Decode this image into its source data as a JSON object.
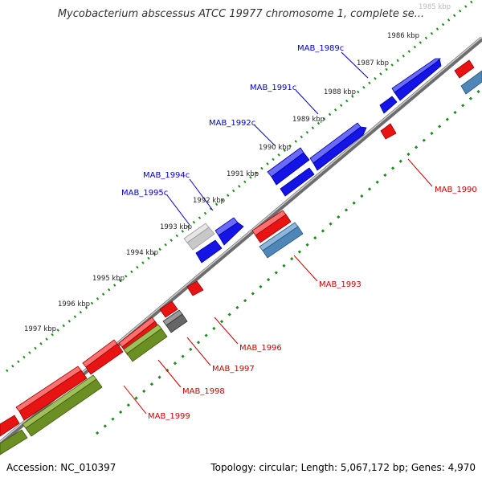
{
  "header": {
    "title": "Mycobacterium abscessus ATCC 19977 chromosome 1, complete se..."
  },
  "footer": {
    "accession": "Accession: NC_010397",
    "summary": "Topology: circular; Length: 5,067,172 bp; Genes: 4,970"
  },
  "ticks": [
    {
      "label": "1985 kbp"
    },
    {
      "label": "1986 kbp"
    },
    {
      "label": "1987 kbp"
    },
    {
      "label": "1988 kbp"
    },
    {
      "label": "1989 kbp"
    },
    {
      "label": "1990 kbp"
    },
    {
      "label": "1991 kbp"
    },
    {
      "label": "1992 kbp"
    },
    {
      "label": "1993 kbp"
    },
    {
      "label": "1994 kbp"
    },
    {
      "label": "1995 kbp"
    },
    {
      "label": "1996 kbp"
    },
    {
      "label": "1997 kbp"
    }
  ],
  "genes_top": [
    {
      "label": "MAB_1989c"
    },
    {
      "label": "MAB_1991c"
    },
    {
      "label": "MAB_1992c"
    },
    {
      "label": "MAB_1994c"
    },
    {
      "label": "MAB_1995c"
    }
  ],
  "genes_bottom": [
    {
      "label": "MAB_1990"
    },
    {
      "label": "MAB_1993"
    },
    {
      "label": "MAB_1996"
    },
    {
      "label": "MAB_1997"
    },
    {
      "label": "MAB_1998"
    },
    {
      "label": "MAB_1999"
    }
  ],
  "colors": {
    "reverse_gene": "#1010e0",
    "forward_gene": "#e81010",
    "rna_gene": "#4f86b8",
    "other_gene": "#6b8f23",
    "pseudo_gene": "#bbbbbb",
    "misc_gene": "#666666",
    "backbone": "#7a7a7a",
    "tick_marks": "#228b22",
    "label_top": "#0000cc",
    "label_bottom": "#cc0000"
  }
}
